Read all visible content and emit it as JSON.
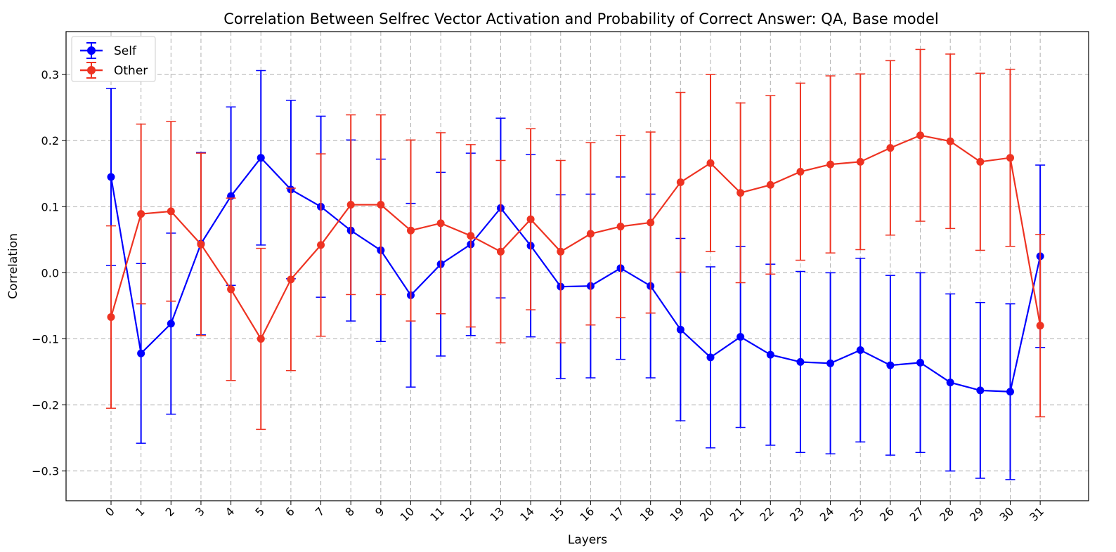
{
  "chart_data": {
    "type": "line",
    "title": "Correlation Between Selfrec Vector Activation and Probability of Correct Answer: QA, Base model",
    "xlabel": "Layers",
    "ylabel": "Correlation",
    "categories": [
      "0",
      "1",
      "2",
      "3",
      "4",
      "5",
      "6",
      "7",
      "8",
      "9",
      "10",
      "11",
      "12",
      "13",
      "14",
      "15",
      "16",
      "17",
      "18",
      "19",
      "20",
      "21",
      "22",
      "23",
      "24",
      "25",
      "26",
      "27",
      "28",
      "29",
      "30",
      "31"
    ],
    "ylim": [
      -0.345,
      0.365
    ],
    "yticks": [
      -0.3,
      -0.2,
      -0.1,
      0.0,
      0.1,
      0.2,
      0.3
    ],
    "ytick_labels": [
      "−0.3",
      "−0.2",
      "−0.1",
      "0.0",
      "0.1",
      "0.2",
      "0.3"
    ],
    "grid": true,
    "legend_position": "top-left",
    "series": [
      {
        "name": "Self",
        "color": "#0000ff",
        "values": [
          0.145,
          -0.122,
          -0.077,
          0.044,
          0.116,
          0.174,
          0.126,
          0.1,
          0.064,
          0.034,
          -0.034,
          0.013,
          0.043,
          0.098,
          0.041,
          -0.021,
          -0.02,
          0.007,
          -0.02,
          -0.086,
          -0.128,
          -0.097,
          -0.124,
          -0.135,
          -0.137,
          -0.117,
          -0.14,
          -0.136,
          -0.166,
          -0.178,
          -0.18,
          0.025
        ],
        "error": [
          0.134,
          0.136,
          0.137,
          0.138,
          0.135,
          0.132,
          0.135,
          0.137,
          0.137,
          0.138,
          0.139,
          0.139,
          0.138,
          0.136,
          0.138,
          0.139,
          0.139,
          0.138,
          0.139,
          0.138,
          0.137,
          0.137,
          0.137,
          0.137,
          0.137,
          0.139,
          0.136,
          0.136,
          0.134,
          0.133,
          0.133,
          0.138
        ]
      },
      {
        "name": "Other",
        "color": "#ee3322",
        "values": [
          -0.067,
          0.089,
          0.093,
          0.043,
          -0.025,
          -0.1,
          -0.01,
          0.042,
          0.103,
          0.103,
          0.064,
          0.075,
          0.056,
          0.032,
          0.081,
          0.032,
          0.059,
          0.07,
          0.076,
          0.137,
          0.166,
          0.121,
          0.133,
          0.153,
          0.164,
          0.168,
          0.189,
          0.208,
          0.199,
          0.168,
          0.174,
          -0.08
        ],
        "error": [
          0.138,
          0.136,
          0.136,
          0.138,
          0.138,
          0.137,
          0.138,
          0.138,
          0.136,
          0.136,
          0.137,
          0.137,
          0.138,
          0.138,
          0.137,
          0.138,
          0.138,
          0.138,
          0.137,
          0.136,
          0.134,
          0.136,
          0.135,
          0.134,
          0.134,
          0.133,
          0.132,
          0.13,
          0.132,
          0.134,
          0.134,
          0.138
        ]
      }
    ]
  }
}
